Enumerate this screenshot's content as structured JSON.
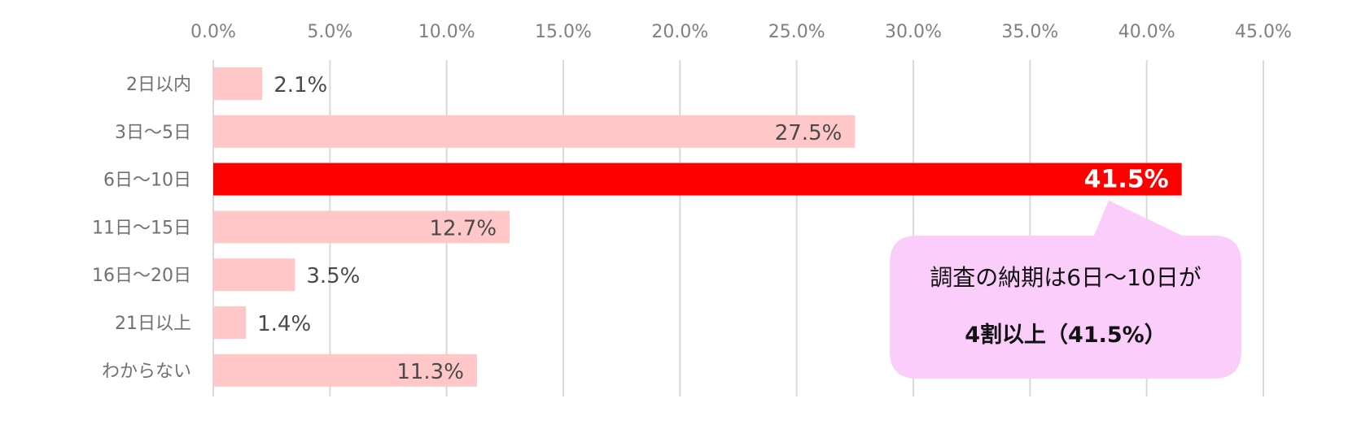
{
  "chart_data": {
    "type": "bar",
    "orientation": "horizontal",
    "categories": [
      "2日以内",
      "3日～5日",
      "6日～10日",
      "11日～15日",
      "16日～20日",
      "21日以上",
      "わからない"
    ],
    "values": [
      2.1,
      27.5,
      41.5,
      12.7,
      3.5,
      1.4,
      11.3
    ],
    "value_labels": [
      "2.1%",
      "27.5%",
      "41.5%",
      "12.7%",
      "3.5%",
      "1.4%",
      "11.3%"
    ],
    "highlight_index": 2,
    "xlim": [
      0,
      45
    ],
    "x_ticks": [
      "0.0%",
      "5.0%",
      "10.0%",
      "15.0%",
      "20.0%",
      "25.0%",
      "30.0%",
      "35.0%",
      "40.0%",
      "45.0%"
    ],
    "x_axis_position": "top",
    "grid": true,
    "title": "",
    "xlabel": "",
    "ylabel": "",
    "annotation": {
      "line1": "調査の納期は6日～10日が",
      "line2": "4割以上（41.5%）",
      "fill_color": "#fbcdfb",
      "points_to": "6日～10日"
    },
    "colors": {
      "bar": "#ffc7c7",
      "highlight": "#ff0000",
      "grid": "#d9d9d9"
    }
  }
}
